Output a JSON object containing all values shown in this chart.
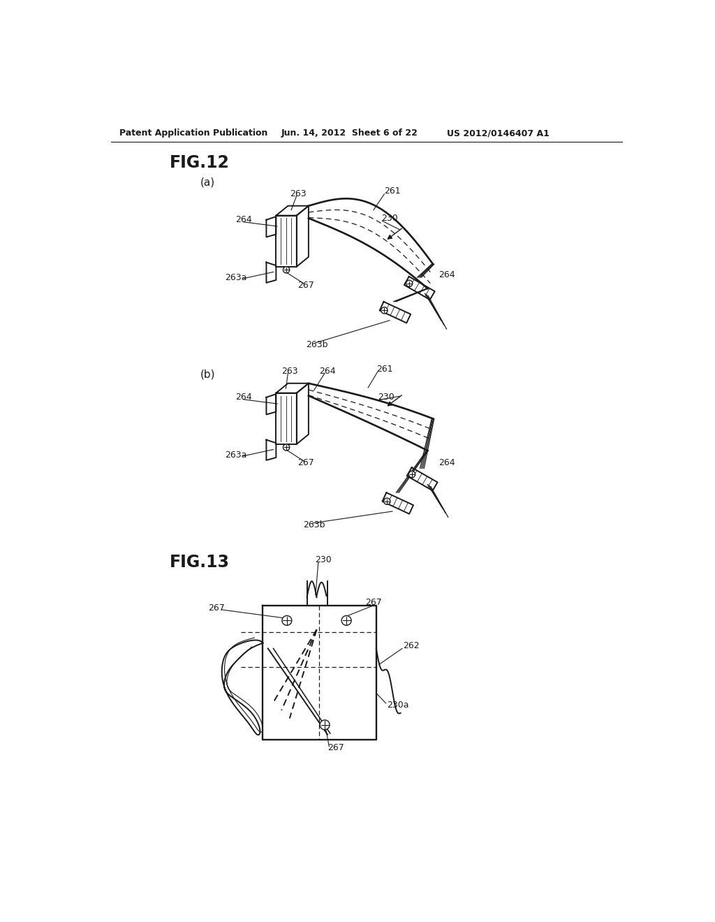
{
  "header_left": "Patent Application Publication",
  "header_mid": "Jun. 14, 2012  Sheet 6 of 22",
  "header_right": "US 2012/0146407 A1",
  "fig12_title": "FIG.12",
  "fig12a_label": "(a)",
  "fig12b_label": "(b)",
  "fig13_title": "FIG.13",
  "bg_color": "#ffffff",
  "lc": "#1a1a1a"
}
